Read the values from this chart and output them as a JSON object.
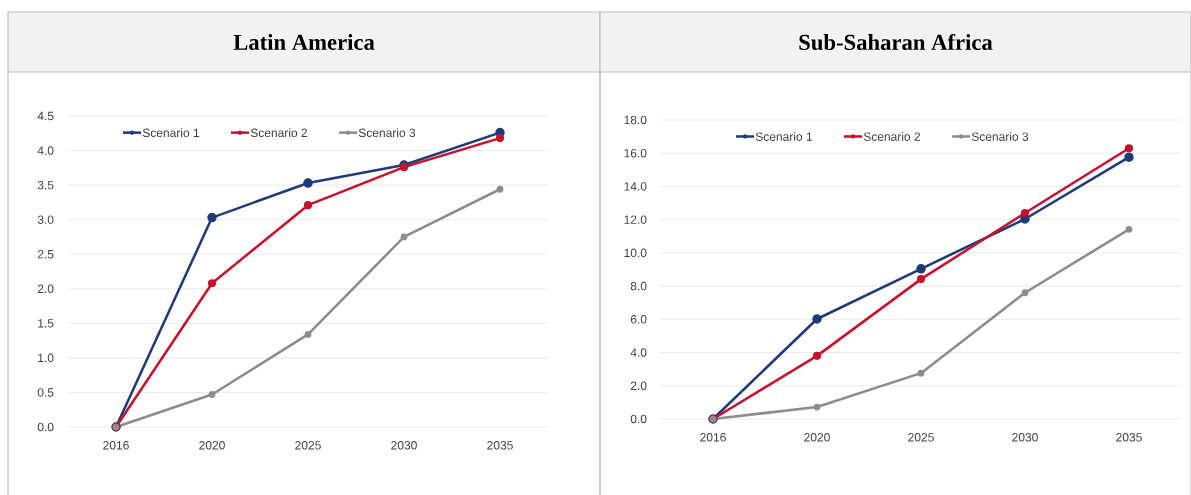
{
  "chart_data": [
    {
      "type": "line",
      "title": "Latin America",
      "categories": [
        "2016",
        "2020",
        "2025",
        "2030",
        "2035"
      ],
      "series": [
        {
          "name": "Scenario 1",
          "color": "#1f3a7a",
          "values": [
            0,
            3.03,
            3.53,
            3.79,
            4.26
          ]
        },
        {
          "name": "Scenario 2",
          "color": "#c8102e",
          "values": [
            0,
            2.08,
            3.21,
            3.76,
            4.18
          ]
        },
        {
          "name": "Scenario 3",
          "color": "#8c8c8c",
          "values": [
            0,
            0.47,
            1.34,
            2.75,
            3.44
          ]
        }
      ],
      "ylim": [
        0,
        4.5
      ],
      "yticks": [
        {
          "value": 0,
          "label": "0.0"
        },
        0.5,
        {
          "value": 1,
          "label": "1.0"
        },
        1.5,
        {
          "value": 2,
          "label": "2.0"
        },
        2.5,
        {
          "value": 3,
          "label": "3.0"
        },
        3.5,
        {
          "value": 4,
          "label": "4.0"
        },
        4.5
      ],
      "grid": "y",
      "legend": "top",
      "marker": "circle",
      "line_style": "solid"
    },
    {
      "type": "line",
      "title": "Sub-Saharan Africa",
      "categories": [
        "2016",
        "2020",
        "2025",
        "2030",
        "2035"
      ],
      "series": [
        {
          "name": "Scenario 1",
          "color": "#1f3a7a",
          "values": [
            0,
            6.02,
            9.04,
            12.04,
            15.76
          ]
        },
        {
          "name": "Scenario 2",
          "color": "#c8102e",
          "values": [
            0,
            3.8,
            8.42,
            12.4,
            16.3
          ]
        },
        {
          "name": "Scenario 3",
          "color": "#8c8c8c",
          "values": [
            0,
            0.72,
            2.76,
            7.6,
            11.42
          ]
        }
      ],
      "ylim": [
        0,
        18
      ],
      "yticks": [
        {
          "value": 0,
          "label": "0.0"
        },
        {
          "value": 2,
          "label": "2.0"
        },
        {
          "value": 4,
          "label": "4.0"
        },
        {
          "value": 6,
          "label": "6.0"
        },
        {
          "value": 8,
          "label": "8.0"
        },
        {
          "value": 10,
          "label": "10.0"
        },
        {
          "value": 12,
          "label": "12.0"
        },
        {
          "value": 14,
          "label": "14.0"
        },
        {
          "value": 16,
          "label": "16.0"
        },
        {
          "value": 18,
          "label": "18.0"
        }
      ],
      "grid": "y",
      "legend": "top",
      "marker": "circle",
      "line_style": "solid"
    }
  ]
}
